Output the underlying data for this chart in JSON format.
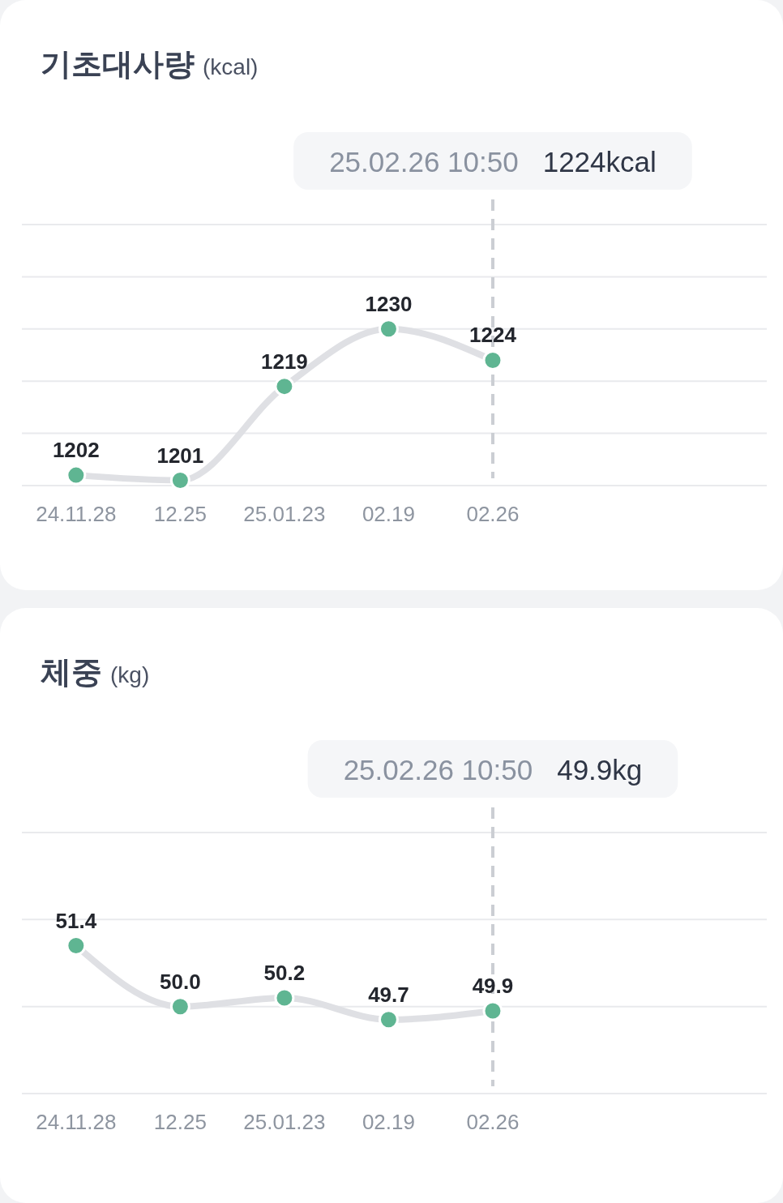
{
  "chart_data": [
    {
      "type": "line",
      "title": "기초대사량",
      "ylabel": "(kcal)",
      "categories": [
        "24.11.28",
        "12.25",
        "25.01.23",
        "02.19",
        "02.26"
      ],
      "series": [
        {
          "color": "#5fb592",
          "values": [
            1202,
            1201,
            1219,
            1230,
            1224
          ]
        }
      ],
      "ylim": [
        1200,
        1250
      ],
      "yticks": [
        {
          "value": 1200,
          "label": null
        },
        {
          "value": 1210,
          "label": null
        },
        {
          "value": 1220,
          "label": null
        },
        {
          "value": 1230,
          "label": null
        },
        {
          "value": 1240,
          "label": null
        },
        {
          "value": 1250,
          "label": null
        }
      ],
      "grid": "y",
      "tick_labels": "x",
      "marker": "circle",
      "line_style": "solid",
      "data_labels": true,
      "ref_lines": [
        {
          "axis": "x",
          "value": "02.26",
          "label": "25.02.26 10:50",
          "line_style": "dashed",
          "color": "#cbced3"
        }
      ],
      "annotations": [
        "1224kcal"
      ]
    },
    {
      "type": "line",
      "title": "체중",
      "ylabel": "(kg)",
      "categories": [
        "24.11.28",
        "12.25",
        "25.01.23",
        "02.19",
        "02.26"
      ],
      "series": [
        {
          "color": "#5fb592",
          "values": [
            51.4,
            50.0,
            50.2,
            49.7,
            49.9
          ],
          "value_labels": [
            "51.4",
            "50.0",
            "50.2",
            "49.7",
            "49.9"
          ]
        }
      ],
      "ylim": [
        48,
        54
      ],
      "yticks": [
        {
          "value": 48,
          "label": null
        },
        {
          "value": 50,
          "label": null
        },
        {
          "value": 52,
          "label": null
        },
        {
          "value": 54,
          "label": null
        }
      ],
      "grid": "y",
      "tick_labels": "x",
      "marker": "circle",
      "line_style": "solid",
      "ref_lines": [
        {
          "axis": "x",
          "value": "02.26",
          "label": "25.02.26 10:50",
          "line_style": "dashed",
          "color": "#cbced3"
        }
      ],
      "annotations": [
        "49.9kg"
      ]
    }
  ]
}
